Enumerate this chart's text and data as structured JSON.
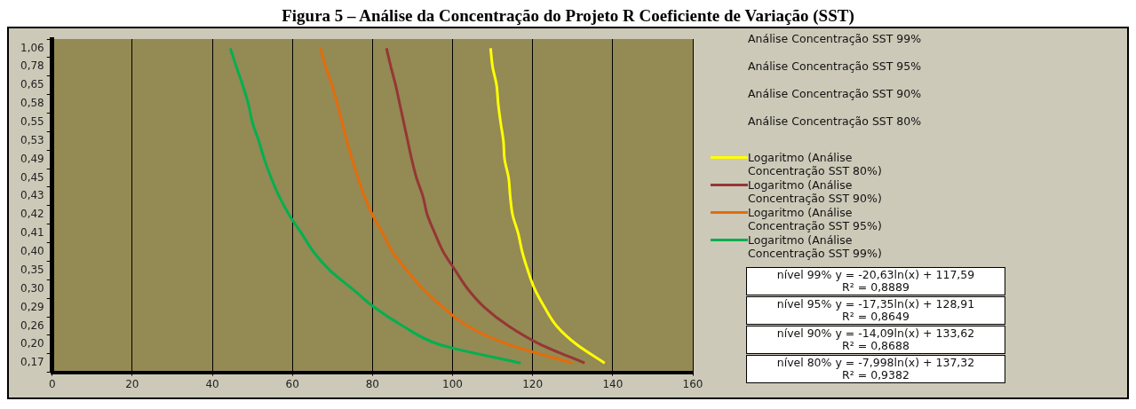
{
  "chart_data": {
    "type": "line",
    "orientation": "horizontal",
    "title": "Figura 5 – Análise da Concentração do Projeto R Coeficiente de Variação (SST)",
    "categories": [
      "1,06",
      "0,78",
      "0,65",
      "0,58",
      "0,55",
      "0,53",
      "0,49",
      "0,45",
      "0,43",
      "0,42",
      "0,41",
      "0,40",
      "0,35",
      "0,30",
      "0,29",
      "0,26",
      "0,20",
      "0,17"
    ],
    "series": [
      {
        "name": "Logaritmo (Análise Concentração SST 80%)",
        "color": "#ffff00",
        "values": [
          109.5,
          110,
          111,
          111.4,
          112,
          112.7,
          113,
          114,
          114.4,
          115,
          116.4,
          117.4,
          118.8,
          120.5,
          123,
          126,
          131,
          138
        ]
      },
      {
        "name": "Logaritmo (Análise Concentração SST 90%)",
        "color": "#953735",
        "values": [
          83.5,
          84.6,
          85.8,
          86.8,
          87.8,
          88.8,
          89.8,
          91,
          92.6,
          93.7,
          95.6,
          97.7,
          100.7,
          103.8,
          108,
          114,
          122,
          133
        ]
      },
      {
        "name": "Logaritmo (Análise Concentração SST 95%)",
        "color": "#e46c0a",
        "values": [
          67,
          68.3,
          69.9,
          71.2,
          72.4,
          73.6,
          74.9,
          76.4,
          78,
          80,
          82.6,
          85,
          88.6,
          92.6,
          97.7,
          103.8,
          114,
          130
        ]
      },
      {
        "name": "Logaritmo (Análise Concentração SST 99%)",
        "color": "#00b050",
        "values": [
          44.5,
          46,
          47.6,
          49,
          50,
          51.6,
          53,
          54.7,
          56.7,
          59.2,
          62.3,
          65.3,
          69.4,
          75,
          80.5,
          87.6,
          96.7,
          117
        ]
      }
    ],
    "xlim": [
      0,
      160
    ],
    "xticks": [
      0,
      20,
      40,
      60,
      80,
      100,
      120,
      140,
      160
    ],
    "grid": "x",
    "marker": "none",
    "legend": "right",
    "annotations": [
      "Análise Concentração SST 99%",
      "Análise Concentração SST 95%",
      "Análise Concentração SST 90%",
      "Análise Concentração SST 80%",
      "nível 99% y = -20,63ln(x) + 117,59",
      "R² = 0,8889",
      "nível 95% y = -17,35ln(x) + 128,91",
      "R² = 0,8649",
      "nível 90% y = -14,09ln(x) + 133,62",
      "R² = 0,8688",
      "nível 80% y = -7,998ln(x) + 137,32",
      "R² = 0,9382"
    ]
  }
}
